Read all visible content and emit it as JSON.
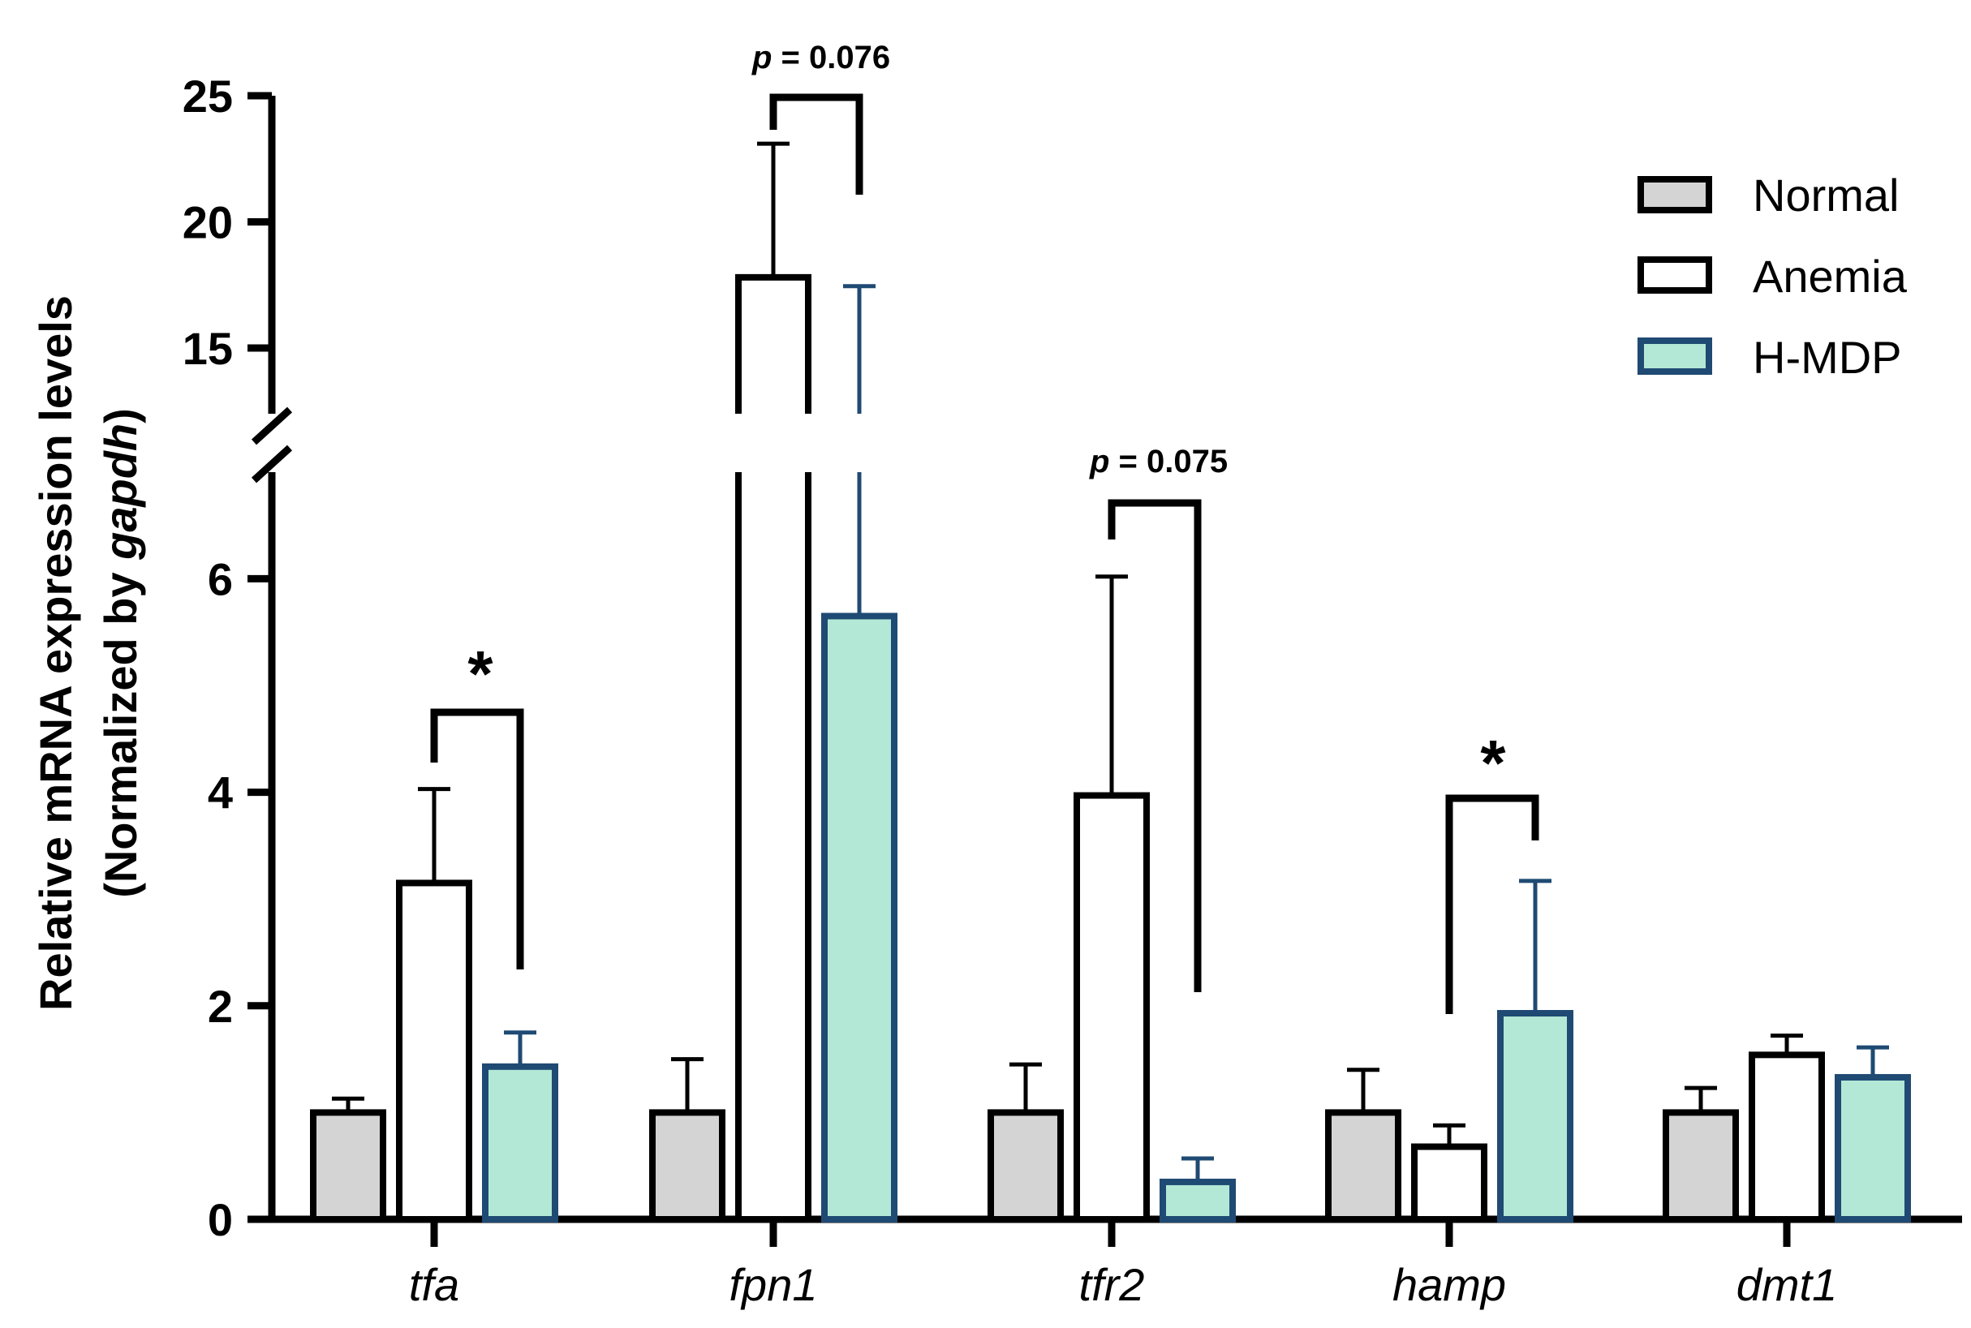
{
  "chart_data": {
    "type": "bar",
    "categories": [
      "tfa",
      "fpn1",
      "tfr2",
      "hamp",
      "dmt1"
    ],
    "series": [
      {
        "name": "Normal",
        "values": [
          1.0,
          1.0,
          1.0,
          1.0,
          1.0
        ],
        "errors": [
          0.13,
          0.5,
          0.45,
          0.4,
          0.23
        ],
        "fill": "#d4d4d4",
        "stroke": "#000000"
      },
      {
        "name": "Anemia",
        "values": [
          3.15,
          17.8,
          3.97,
          0.68,
          1.54
        ],
        "errors": [
          0.88,
          5.3,
          2.05,
          0.2,
          0.18
        ],
        "fill": "#ffffff",
        "stroke": "#000000"
      },
      {
        "name": "H-MDP",
        "values": [
          1.43,
          5.65,
          0.35,
          1.93,
          1.33
        ],
        "errors": [
          0.32,
          11.8,
          0.22,
          1.24,
          0.28
        ],
        "fill": "#b3e8d6",
        "stroke": "#1f4a73"
      }
    ],
    "ylabel_line1": "Relative mRNA expression levels",
    "ylabel_line2_prefix": "(Normalized by ",
    "ylabel_line2_italic": "gapdh",
    "ylabel_line2_suffix": ")",
    "y_axis": {
      "lower_range": [
        0,
        7
      ],
      "lower_ticks": [
        "0",
        "2",
        "4",
        "6"
      ],
      "upper_range": [
        13,
        25
      ],
      "upper_ticks": [
        "15",
        "20",
        "25"
      ],
      "broken": true
    },
    "legend": {
      "placement": "top-right",
      "entries": [
        "Normal",
        "Anemia",
        "H-MDP"
      ]
    },
    "annotations": [
      {
        "category": "tfa",
        "label": "*",
        "between": [
          "Anemia",
          "H-MDP"
        ]
      },
      {
        "category": "fpn1",
        "label_p": "p",
        "label_rest": " = 0.076",
        "between": [
          "Anemia",
          "H-MDP"
        ]
      },
      {
        "category": "tfr2",
        "label_p": "p",
        "label_rest": " = 0.075",
        "between": [
          "Anemia",
          "H-MDP"
        ]
      },
      {
        "category": "hamp",
        "label": "*",
        "between": [
          "Anemia",
          "H-MDP"
        ]
      }
    ]
  }
}
